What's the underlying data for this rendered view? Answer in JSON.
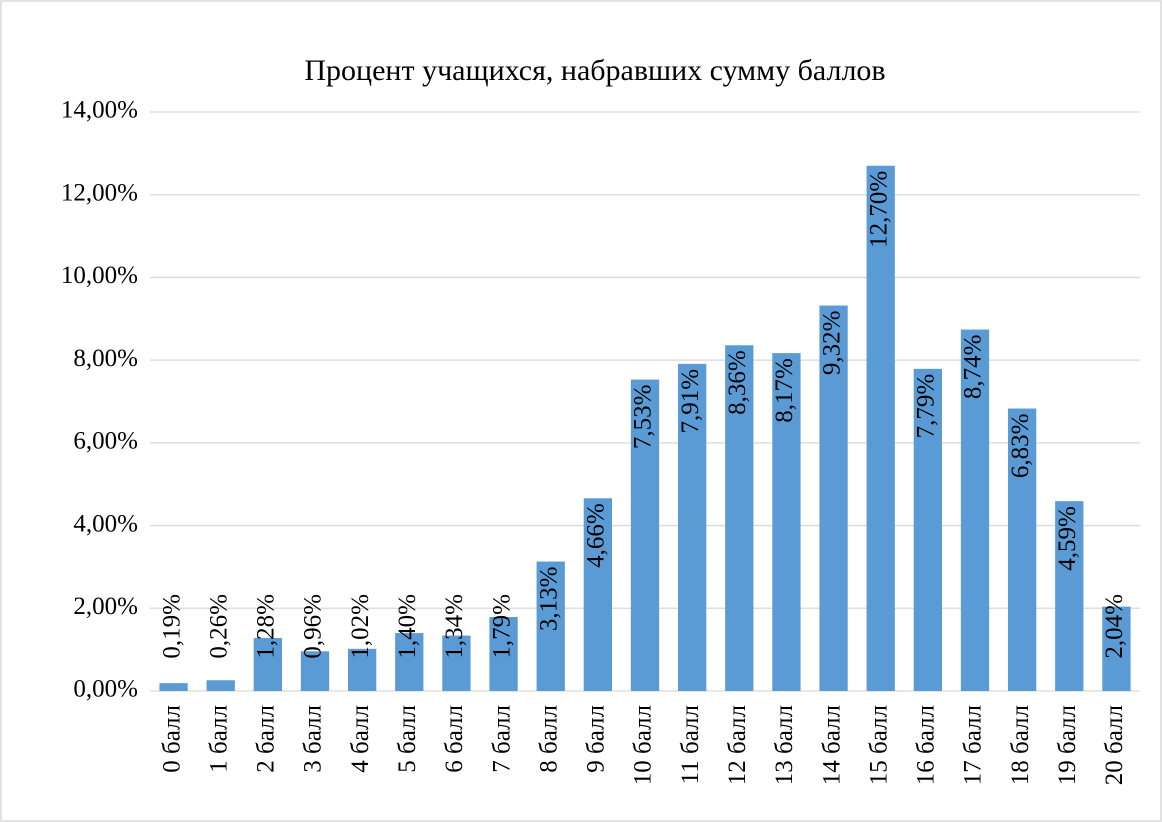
{
  "chart_data": {
    "type": "bar",
    "title": "Процент учащихся, набравших сумму баллов",
    "categories": [
      "0 балл",
      "1 балл",
      "2 балл",
      "3 балл",
      "4 балл",
      "5 балл",
      "6 балл",
      "7 балл",
      "8 балл",
      "9 балл",
      "10 балл",
      "11 балл",
      "12 балл",
      "13 балл",
      "14 балл",
      "15 балл",
      "16 балл",
      "17 балл",
      "18 балл",
      "19 балл",
      "20 балл"
    ],
    "values": [
      0.19,
      0.26,
      1.28,
      0.96,
      1.02,
      1.4,
      1.34,
      1.79,
      3.13,
      4.66,
      7.53,
      7.91,
      8.36,
      8.17,
      9.32,
      12.7,
      7.79,
      8.74,
      6.83,
      4.59,
      2.04
    ],
    "value_labels": [
      "0,19%",
      "0,26%",
      "1,28%",
      "0,96%",
      "1,02%",
      "1,40%",
      "1,34%",
      "1,79%",
      "3,13%",
      "4,66%",
      "7,53%",
      "7,91%",
      "8,36%",
      "8,17%",
      "9,32%",
      "12,70%",
      "7,79%",
      "8,74%",
      "6,83%",
      "4,59%",
      "2,04%"
    ],
    "color": "#5b9bd5",
    "ylim": [
      0,
      14
    ],
    "yticks": [
      {
        "value": 0,
        "label": "0,00%"
      },
      {
        "value": 2,
        "label": "2,00%"
      },
      {
        "value": 4,
        "label": "4,00%"
      },
      {
        "value": 6,
        "label": "6,00%"
      },
      {
        "value": 8,
        "label": "8,00%"
      },
      {
        "value": 10,
        "label": "10,00%"
      },
      {
        "value": 12,
        "label": "12,00%"
      },
      {
        "value": 14,
        "label": "14,00%"
      }
    ],
    "grid": true
  }
}
